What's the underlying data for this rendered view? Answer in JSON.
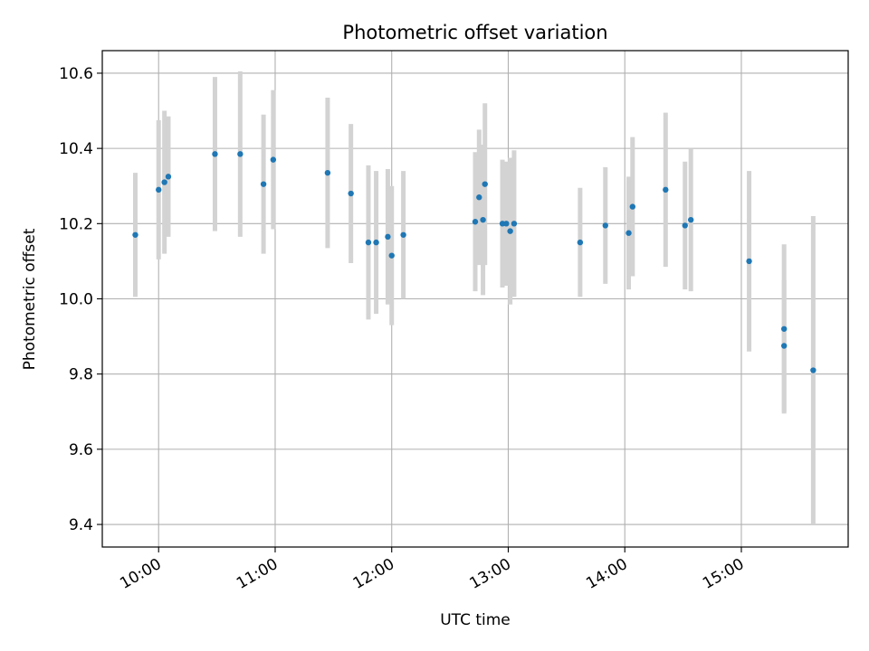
{
  "chart_data": {
    "type": "scatter",
    "title": "Photometric offset variation",
    "xlabel": "UTC time",
    "ylabel": "Photometric offset",
    "x_ticks": [
      "10:00",
      "11:00",
      "12:00",
      "13:00",
      "14:00",
      "15:00"
    ],
    "x_tick_values": [
      "10:00",
      "11:00",
      "12:00",
      "13:00",
      "14:00",
      "15:00"
    ],
    "y_ticks": [
      "9.4",
      "9.6",
      "9.8",
      "10.0",
      "10.2",
      "10.4",
      "10.6"
    ],
    "xlim": [
      "09:31",
      "15:55"
    ],
    "ylim": [
      9.34,
      10.66
    ],
    "grid": true,
    "colors": {
      "point": "#1f77b4",
      "errorbar": "#d3d3d3",
      "grid": "#b0b0b0"
    },
    "points": [
      {
        "x": "09:48",
        "y": 10.17,
        "yerr": 0.165
      },
      {
        "x": "10:00",
        "y": 10.29,
        "yerr": 0.185
      },
      {
        "x": "10:03",
        "y": 10.31,
        "yerr": 0.19
      },
      {
        "x": "10:05",
        "y": 10.325,
        "yerr": 0.16
      },
      {
        "x": "10:29",
        "y": 10.385,
        "yerr": 0.205
      },
      {
        "x": "10:42",
        "y": 10.385,
        "yerr": 0.22
      },
      {
        "x": "10:54",
        "y": 10.305,
        "yerr": 0.185
      },
      {
        "x": "10:59",
        "y": 10.37,
        "yerr": 0.185
      },
      {
        "x": "11:27",
        "y": 10.335,
        "yerr": 0.2
      },
      {
        "x": "11:39",
        "y": 10.28,
        "yerr": 0.185
      },
      {
        "x": "11:48",
        "y": 10.15,
        "yerr": 0.205
      },
      {
        "x": "11:52",
        "y": 10.15,
        "yerr": 0.19
      },
      {
        "x": "11:58",
        "y": 10.165,
        "yerr": 0.18
      },
      {
        "x": "12:00",
        "y": 10.115,
        "yerr": 0.185
      },
      {
        "x": "12:06",
        "y": 10.17,
        "yerr": 0.17
      },
      {
        "x": "12:43",
        "y": 10.205,
        "yerr": 0.185
      },
      {
        "x": "12:45",
        "y": 10.27,
        "yerr": 0.18
      },
      {
        "x": "12:47",
        "y": 10.21,
        "yerr": 0.2
      },
      {
        "x": "12:48",
        "y": 10.305,
        "yerr": 0.215
      },
      {
        "x": "12:57",
        "y": 10.2,
        "yerr": 0.17
      },
      {
        "x": "12:59",
        "y": 10.2,
        "yerr": 0.165
      },
      {
        "x": "13:01",
        "y": 10.18,
        "yerr": 0.195
      },
      {
        "x": "13:03",
        "y": 10.2,
        "yerr": 0.195
      },
      {
        "x": "13:37",
        "y": 10.15,
        "yerr": 0.145
      },
      {
        "x": "13:50",
        "y": 10.195,
        "yerr": 0.155
      },
      {
        "x": "14:02",
        "y": 10.175,
        "yerr": 0.15
      },
      {
        "x": "14:04",
        "y": 10.245,
        "yerr": 0.185
      },
      {
        "x": "14:21",
        "y": 10.29,
        "yerr": 0.205
      },
      {
        "x": "14:31",
        "y": 10.195,
        "yerr": 0.17
      },
      {
        "x": "14:34",
        "y": 10.21,
        "yerr": 0.19
      },
      {
        "x": "15:04",
        "y": 10.1,
        "yerr": 0.24
      },
      {
        "x": "15:22",
        "y": 9.92,
        "yerr": 0.225
      },
      {
        "x": "15:22",
        "y": 9.875,
        "yerr": 0.175
      },
      {
        "x": "15:37",
        "y": 9.81,
        "yerr": 0.41
      }
    ]
  }
}
